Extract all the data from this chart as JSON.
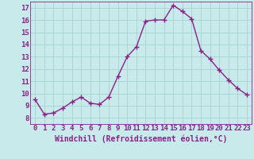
{
  "x": [
    0,
    1,
    2,
    3,
    4,
    5,
    6,
    7,
    8,
    9,
    10,
    11,
    12,
    13,
    14,
    15,
    16,
    17,
    18,
    19,
    20,
    21,
    22,
    23
  ],
  "y": [
    9.5,
    8.3,
    8.4,
    8.8,
    9.3,
    9.7,
    9.2,
    9.1,
    9.7,
    11.4,
    13.0,
    13.8,
    15.9,
    16.0,
    16.0,
    17.2,
    16.7,
    16.1,
    13.5,
    12.8,
    11.9,
    11.1,
    10.4,
    9.9
  ],
  "line_color": "#882288",
  "marker": "+",
  "marker_size": 4,
  "marker_lw": 1.0,
  "bg_color": "#c8eaea",
  "grid_color": "#a0cccc",
  "xlabel": "Windchill (Refroidissement éolien,°C)",
  "ylim": [
    7.5,
    17.5
  ],
  "xlim": [
    -0.5,
    23.5
  ],
  "yticks": [
    8,
    9,
    10,
    11,
    12,
    13,
    14,
    15,
    16,
    17
  ],
  "xticks": [
    0,
    1,
    2,
    3,
    4,
    5,
    6,
    7,
    8,
    9,
    10,
    11,
    12,
    13,
    14,
    15,
    16,
    17,
    18,
    19,
    20,
    21,
    22,
    23
  ],
  "tick_label_size": 6.5,
  "xlabel_size": 7.0,
  "axis_color": "#882288",
  "line_width": 1.0
}
